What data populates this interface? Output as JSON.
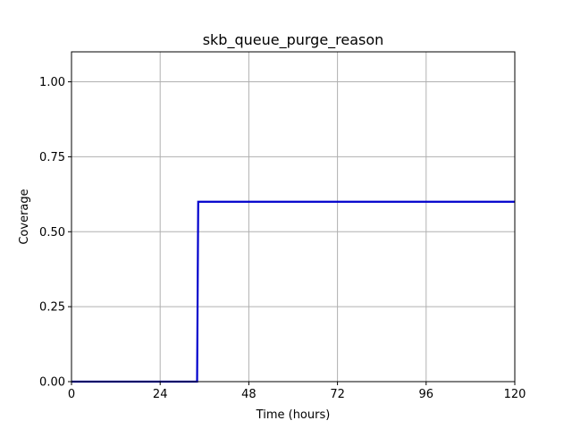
{
  "chart_data": {
    "type": "line",
    "title": "skb_queue_purge_reason",
    "xlabel": "Time (hours)",
    "ylabel": "Coverage",
    "xlim": [
      0,
      120
    ],
    "ylim": [
      0,
      1.1
    ],
    "xticks": [
      0,
      24,
      48,
      72,
      96,
      120
    ],
    "xtick_labels": [
      "0",
      "24",
      "48",
      "72",
      "96",
      "120"
    ],
    "yticks": [
      0,
      0.25,
      0.5,
      0.75,
      1.0
    ],
    "ytick_labels": [
      "0.00",
      "0.25",
      "0.50",
      "0.75",
      "1.00"
    ],
    "grid": true,
    "series": [
      {
        "color": "#0000cc",
        "x": [
          0,
          34,
          34.3,
          120
        ],
        "y": [
          0,
          0,
          0.6,
          0.6
        ]
      }
    ]
  }
}
